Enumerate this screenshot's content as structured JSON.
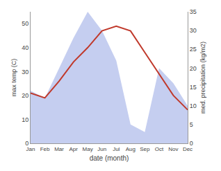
{
  "chart_data": {
    "type": "line",
    "xlabel": "date (month)",
    "ylabel": "max temp (C)",
    "y2label": "med. precipitation (kg/m2)",
    "categories": [
      "Jan",
      "Feb",
      "Mar",
      "Apr",
      "May",
      "Jun",
      "Jul",
      "Aug",
      "Sep",
      "Oct",
      "Nov",
      "Dec"
    ],
    "series": [
      {
        "type": "area",
        "axis": "y2",
        "color": "#c5cef0",
        "values": [
          14,
          12,
          20,
          28,
          35,
          30,
          22,
          5,
          3,
          20,
          16,
          10
        ]
      },
      {
        "type": "line",
        "color": "#c0392b",
        "values": [
          21,
          19,
          26,
          34,
          40,
          47,
          49,
          47,
          38,
          29,
          20,
          14
        ]
      }
    ],
    "ylim": [
      0,
      55
    ],
    "yticks": [
      0,
      10,
      20,
      30,
      40,
      50
    ],
    "y2lim": [
      0,
      35
    ],
    "y2ticks": [
      0,
      5,
      10,
      15,
      20,
      25,
      30,
      35
    ],
    "grid": false
  }
}
